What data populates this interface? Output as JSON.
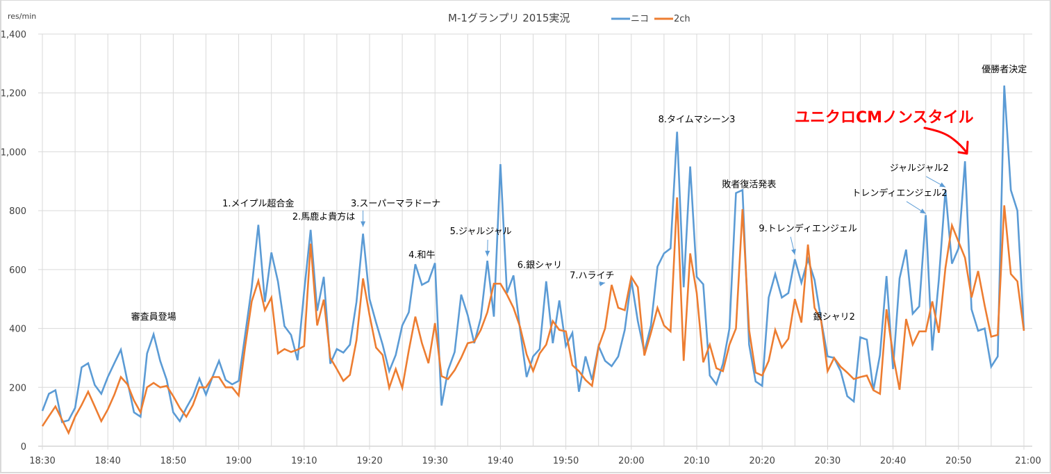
{
  "chart_data": {
    "type": "line",
    "title": "M-1グランプリ 2015実況",
    "ylabel": "res/min",
    "xlabel": "",
    "ylim": [
      0,
      1400
    ],
    "yticks": [
      0,
      200,
      400,
      600,
      800,
      1000,
      1200,
      1400
    ],
    "ytick_labels": [
      "0",
      "200",
      "400",
      "600",
      "800",
      "1,000",
      "1,200",
      "1,400"
    ],
    "x_start": "18:30",
    "x_step_minutes": 1,
    "xtick_labels": [
      "18:30",
      "18:40",
      "18:50",
      "19:00",
      "19:10",
      "19:20",
      "19:30",
      "19:40",
      "19:50",
      "20:00",
      "20:10",
      "20:20",
      "20:30",
      "20:40",
      "20:50",
      "21:00"
    ],
    "xtick_minutes": [
      0,
      10,
      20,
      30,
      40,
      50,
      60,
      70,
      80,
      90,
      100,
      110,
      120,
      130,
      140,
      150
    ],
    "grid": true,
    "legend": "top",
    "series": [
      {
        "name": "ニコ",
        "color": "#5b9bd5",
        "values": [
          120,
          178,
          190,
          82,
          88,
          130,
          268,
          282,
          208,
          178,
          235,
          282,
          328,
          220,
          115,
          100,
          315,
          380,
          290,
          225,
          115,
          85,
          130,
          170,
          230,
          175,
          235,
          290,
          225,
          210,
          222,
          380,
          540,
          752,
          490,
          658,
          560,
          408,
          378,
          292,
          525,
          735,
          460,
          575,
          280,
          330,
          318,
          345,
          490,
          722,
          500,
          420,
          345,
          255,
          310,
          410,
          455,
          618,
          548,
          560,
          622,
          138,
          258,
          320,
          515,
          445,
          350,
          435,
          630,
          440,
          958,
          520,
          580,
          395,
          235,
          305,
          330,
          560,
          350,
          495,
          340,
          385,
          185,
          305,
          225,
          340,
          290,
          272,
          305,
          395,
          565,
          425,
          320,
          410,
          610,
          655,
          672,
          1068,
          540,
          950,
          575,
          550,
          240,
          210,
          280,
          400,
          860,
          870,
          345,
          220,
          205,
          505,
          585,
          505,
          520,
          635,
          555,
          635,
          565,
          430,
          305,
          300,
          255,
          170,
          152,
          370,
          362,
          190,
          310,
          578,
          262,
          570,
          668,
          450,
          475,
          785,
          325,
          565,
          870,
          620,
          672,
          968,
          465,
          392,
          400,
          270,
          305,
          1225,
          870,
          800,
          395
        ]
      },
      {
        "name": "2ch",
        "color": "#ed7d31",
        "values": [
          68,
          102,
          135,
          90,
          45,
          100,
          140,
          185,
          135,
          85,
          125,
          175,
          235,
          210,
          155,
          115,
          200,
          215,
          200,
          205,
          170,
          130,
          100,
          140,
          200,
          200,
          235,
          235,
          200,
          200,
          172,
          340,
          492,
          562,
          462,
          505,
          315,
          330,
          320,
          328,
          340,
          688,
          410,
          498,
          300,
          262,
          222,
          242,
          360,
          570,
          445,
          335,
          310,
          198,
          262,
          198,
          325,
          440,
          350,
          282,
          418,
          238,
          228,
          258,
          300,
          350,
          355,
          395,
          455,
          552,
          552,
          515,
          470,
          405,
          312,
          255,
          315,
          345,
          425,
          395,
          390,
          275,
          255,
          225,
          205,
          338,
          400,
          548,
          470,
          462,
          575,
          540,
          308,
          385,
          470,
          410,
          390,
          845,
          290,
          655,
          520,
          285,
          345,
          265,
          255,
          345,
          400,
          805,
          395,
          250,
          240,
          290,
          395,
          335,
          365,
          500,
          420,
          685,
          470,
          428,
          255,
          300,
          270,
          250,
          228,
          235,
          240,
          190,
          178,
          465,
          310,
          192,
          432,
          345,
          390,
          390,
          492,
          385,
          605,
          750,
          695,
          640,
          505,
          595,
          478,
          372,
          378,
          818,
          585,
          560,
          392
        ]
      }
    ],
    "annotations": [
      {
        "text": "審査員登場",
        "minute": 17,
        "value": 430,
        "arrow": false
      },
      {
        "text": "1.メイプル超合金",
        "minute": 33,
        "value": 815,
        "arrow": false
      },
      {
        "text": "2.馬鹿よ貴方は",
        "minute": 43,
        "value": 770,
        "arrow": false
      },
      {
        "text": "3.スーパーマラドーナ",
        "minute": 54,
        "value": 815,
        "arrow": true,
        "arrow_to_minute": 49,
        "arrow_to_value": 745
      },
      {
        "text": "4.和牛",
        "minute": 58,
        "value": 640,
        "arrow": false
      },
      {
        "text": "5.ジャルジャル",
        "minute": 67,
        "value": 720,
        "arrow": true,
        "arrow_to_minute": 68,
        "arrow_to_value": 645
      },
      {
        "text": "6.銀シャリ",
        "minute": 76,
        "value": 605,
        "arrow": false
      },
      {
        "text": "7.ハライチ",
        "minute": 84,
        "value": 570,
        "arrow": true,
        "arrow_to_minute": 86,
        "arrow_to_value": 555
      },
      {
        "text": "8.タイムマシーン3",
        "minute": 100,
        "value": 1100,
        "arrow": false
      },
      {
        "text": "敗者復活発表",
        "minute": 108,
        "value": 880,
        "arrow": false
      },
      {
        "text": "9.トレンディエンジェル",
        "minute": 117,
        "value": 730,
        "arrow": true,
        "arrow_to_minute": 115,
        "arrow_to_value": 650
      },
      {
        "text": "銀シャリ2",
        "minute": 121,
        "value": 430,
        "arrow": false
      },
      {
        "text": "トレンディエンジェル2",
        "minute": 131,
        "value": 850,
        "arrow": true,
        "arrow_to_minute": 135,
        "arrow_to_value": 790
      },
      {
        "text": "ジャルジャル2",
        "minute": 134,
        "value": 935,
        "arrow": true,
        "arrow_to_minute": 138,
        "arrow_to_value": 880
      },
      {
        "text": "優勝者決定",
        "minute": 147,
        "value": 1270,
        "arrow": false
      }
    ],
    "callout": {
      "text": "ユニクロCMノンスタイル",
      "color": "#ff0000",
      "minute": 141,
      "value": 1015
    }
  }
}
